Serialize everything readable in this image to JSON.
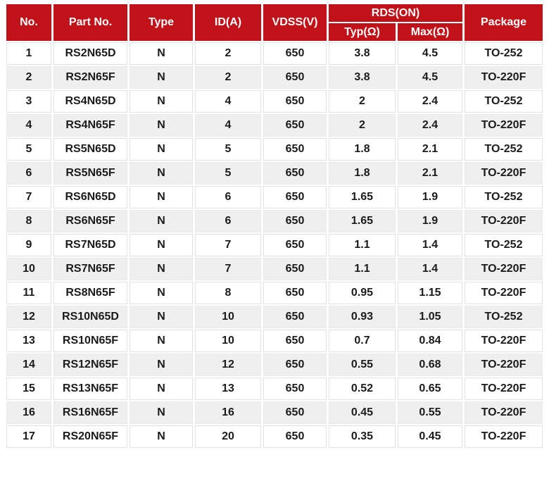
{
  "colors": {
    "header_bg": "#c01218",
    "header_text": "#ffffff",
    "row_bg": "#ffffff",
    "row_alt_bg": "#efeff0",
    "cell_border": "#e2e2e2",
    "text": "#1b1b1b",
    "page_bg": "#ffffff"
  },
  "chart_data": {
    "type": "table",
    "group_label": "RDS(ON)",
    "group_span_keys": [
      "rds_typ",
      "rds_max"
    ],
    "columns": [
      {
        "key": "no",
        "label": "No."
      },
      {
        "key": "part_no",
        "label": "Part No."
      },
      {
        "key": "type",
        "label": "Type"
      },
      {
        "key": "id_a",
        "label": "ID(A)"
      },
      {
        "key": "vdss_v",
        "label": "VDSS(V)"
      },
      {
        "key": "rds_typ",
        "label": "Typ(Ω)"
      },
      {
        "key": "rds_max",
        "label": "Max(Ω)"
      },
      {
        "key": "package",
        "label": "Package"
      }
    ],
    "rows": [
      [
        "1",
        "RS2N65D",
        "N",
        "2",
        "650",
        "3.8",
        "4.5",
        "TO-252"
      ],
      [
        "2",
        "RS2N65F",
        "N",
        "2",
        "650",
        "3.8",
        "4.5",
        "TO-220F"
      ],
      [
        "3",
        "RS4N65D",
        "N",
        "4",
        "650",
        "2",
        "2.4",
        "TO-252"
      ],
      [
        "4",
        "RS4N65F",
        "N",
        "4",
        "650",
        "2",
        "2.4",
        "TO-220F"
      ],
      [
        "5",
        "RS5N65D",
        "N",
        "5",
        "650",
        "1.8",
        "2.1",
        "TO-252"
      ],
      [
        "6",
        "RS5N65F",
        "N",
        "5",
        "650",
        "1.8",
        "2.1",
        "TO-220F"
      ],
      [
        "7",
        "RS6N65D",
        "N",
        "6",
        "650",
        "1.65",
        "1.9",
        "TO-252"
      ],
      [
        "8",
        "RS6N65F",
        "N",
        "6",
        "650",
        "1.65",
        "1.9",
        "TO-220F"
      ],
      [
        "9",
        "RS7N65D",
        "N",
        "7",
        "650",
        "1.1",
        "1.4",
        "TO-252"
      ],
      [
        "10",
        "RS7N65F",
        "N",
        "7",
        "650",
        "1.1",
        "1.4",
        "TO-220F"
      ],
      [
        "11",
        "RS8N65F",
        "N",
        "8",
        "650",
        "0.95",
        "1.15",
        "TO-220F"
      ],
      [
        "12",
        "RS10N65D",
        "N",
        "10",
        "650",
        "0.93",
        "1.05",
        "TO-252"
      ],
      [
        "13",
        "RS10N65F",
        "N",
        "10",
        "650",
        "0.7",
        "0.84",
        "TO-220F"
      ],
      [
        "14",
        "RS12N65F",
        "N",
        "12",
        "650",
        "0.55",
        "0.68",
        "TO-220F"
      ],
      [
        "15",
        "RS13N65F",
        "N",
        "13",
        "650",
        "0.52",
        "0.65",
        "TO-220F"
      ],
      [
        "16",
        "RS16N65F",
        "N",
        "16",
        "650",
        "0.45",
        "0.55",
        "TO-220F"
      ],
      [
        "17",
        "RS20N65F",
        "N",
        "20",
        "650",
        "0.35",
        "0.45",
        "TO-220F"
      ]
    ]
  }
}
